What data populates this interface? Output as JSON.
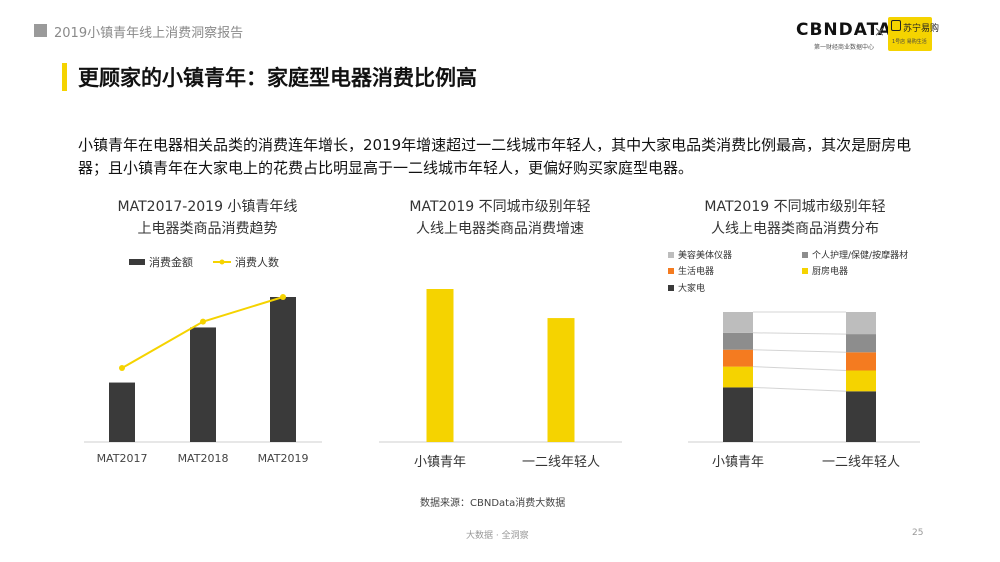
{
  "header": {
    "report_title": "2019小镇青年线上消费洞察报告"
  },
  "brand": {
    "name": "CBNDATA",
    "subtitle": "第一财经商业数据中心",
    "separator": "×",
    "partner_name": "苏宁易购",
    "partner_tagline": "1号店 易购生活"
  },
  "page_title": "更顾家的小镇青年：家庭型电器消费比例高",
  "summary": "小镇青年在电器相关品类的消费连年增长，2019年增速超过一二线城市年轻人，其中大家电品类消费比例最高，其次是厨房电器；且小镇青年在大家电上的花费占比明显高于一二线城市年轻人，更偏好购买家庭型电器。",
  "source": "数据来源：CBNData消费大数据",
  "footer": "大数据 · 全洞察",
  "page_number": "25",
  "colors": {
    "accent": "#f5d300",
    "bar_dark": "#3a3a3a",
    "orange": "#f47b20",
    "gray_light": "#bdbdbd",
    "gray_mid": "#8d8d8d"
  },
  "chart_data": [
    {
      "type": "bar",
      "title_lines": [
        "MAT2017-2019 小镇青年线",
        "上电器类商品消费趋势"
      ],
      "categories": [
        "MAT2017",
        "MAT2018",
        "MAT2019"
      ],
      "series": [
        {
          "name": "消费金额",
          "kind": "bar",
          "values": [
            41,
            79,
            100
          ]
        },
        {
          "name": "消费人数",
          "kind": "line",
          "values": [
            51,
            83,
            100
          ]
        }
      ],
      "ylim": [
        0,
        100
      ],
      "legend": "top"
    },
    {
      "type": "bar",
      "title_lines": [
        "MAT2019 不同城市级别年轻",
        "人线上电器类商品消费增速"
      ],
      "categories": [
        "小镇青年",
        "一二线年轻人"
      ],
      "values": [
        100,
        81
      ],
      "ylim": [
        0,
        100
      ]
    },
    {
      "type": "bar",
      "stacked": true,
      "title_lines": [
        "MAT2019 不同城市级别年轻",
        "人线上电器类商品消费分布"
      ],
      "categories": [
        "小镇青年",
        "一二线年轻人"
      ],
      "series": [
        {
          "name": "大家电",
          "values": [
            42,
            39
          ]
        },
        {
          "name": "厨房电器",
          "values": [
            16,
            16
          ]
        },
        {
          "name": "生活电器",
          "values": [
            13,
            14
          ]
        },
        {
          "name": "个人护理/保健/按摩器材",
          "values": [
            13,
            14
          ]
        },
        {
          "name": "美容美体仪器",
          "values": [
            16,
            17
          ]
        }
      ],
      "ylim": [
        0,
        100
      ],
      "legend": "top"
    }
  ]
}
